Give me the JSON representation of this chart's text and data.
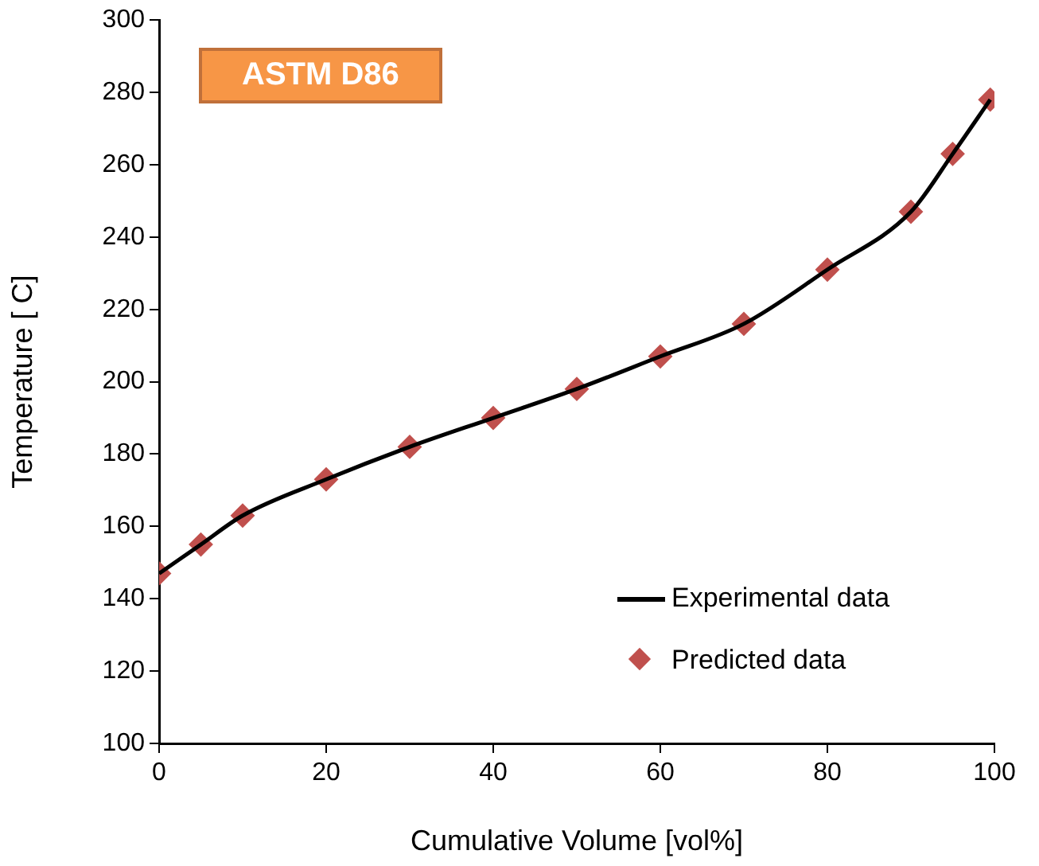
{
  "chart_data": {
    "type": "line",
    "title": "ASTM D86",
    "xlabel": "Cumulative Volume [vol%]",
    "ylabel": "Temperature [ C]",
    "x": [
      0,
      5,
      10,
      20,
      30,
      40,
      50,
      60,
      70,
      80,
      90,
      95,
      99.5
    ],
    "series": [
      {
        "name": "Experimental data",
        "type": "line",
        "color": "#000000",
        "marker": "none",
        "values": [
          147,
          155,
          163,
          173,
          182,
          190,
          198,
          207,
          216,
          231,
          247,
          263,
          278
        ]
      },
      {
        "name": "Predicted data",
        "type": "scatter",
        "color": "#c0504d",
        "marker": "diamond",
        "values": [
          147,
          155,
          163,
          173,
          182,
          190,
          198,
          207,
          216,
          231,
          247,
          263,
          278
        ]
      }
    ],
    "xlim": [
      0,
      100
    ],
    "xticks": [
      0,
      20,
      40,
      60,
      80,
      100
    ],
    "ylim": [
      100,
      300
    ],
    "yticks": [
      100,
      120,
      140,
      160,
      180,
      200,
      220,
      240,
      260,
      280,
      300
    ],
    "grid": false,
    "legend": "bottom right"
  }
}
